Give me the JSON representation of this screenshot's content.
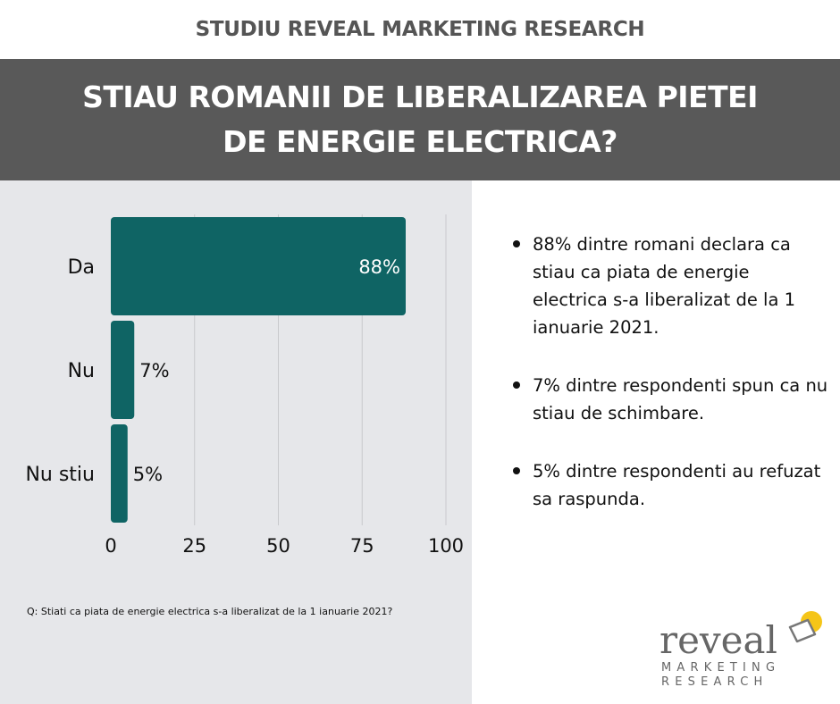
{
  "header": {
    "kicker": "STUDIU REVEAL MARKETING RESEARCH",
    "title": "STIAU ROMANII DE LIBERALIZAREA PIETEI DE ENERGIE ELECTRICA?"
  },
  "chart_data": {
    "type": "bar",
    "orientation": "horizontal",
    "categories": [
      "Da",
      "Nu",
      "Nu stiu"
    ],
    "values": [
      88,
      7,
      5
    ],
    "value_labels": [
      "88%",
      "7%",
      "5%"
    ],
    "x_ticks": [
      0,
      25,
      50,
      75,
      100
    ],
    "xlim": [
      0,
      100
    ],
    "grid": "vertical",
    "bar_color": "#0f6464"
  },
  "question": "Q: Stiati ca piata de energie electrica s-a liberalizat de la 1 ianuarie 2021?",
  "bullets": [
    "88% dintre romani declara ca stiau ca piata de energie electrica s-a liberalizat de la 1 ianuarie 2021.",
    "7% dintre respondenti spun ca nu stiau de schimbare.",
    "5% dintre respondenti au refuzat sa raspunda."
  ],
  "logo": {
    "word": "reveal",
    "line1": "MARKETING",
    "line2": "RESEARCH",
    "accent_color": "#f5c518"
  }
}
